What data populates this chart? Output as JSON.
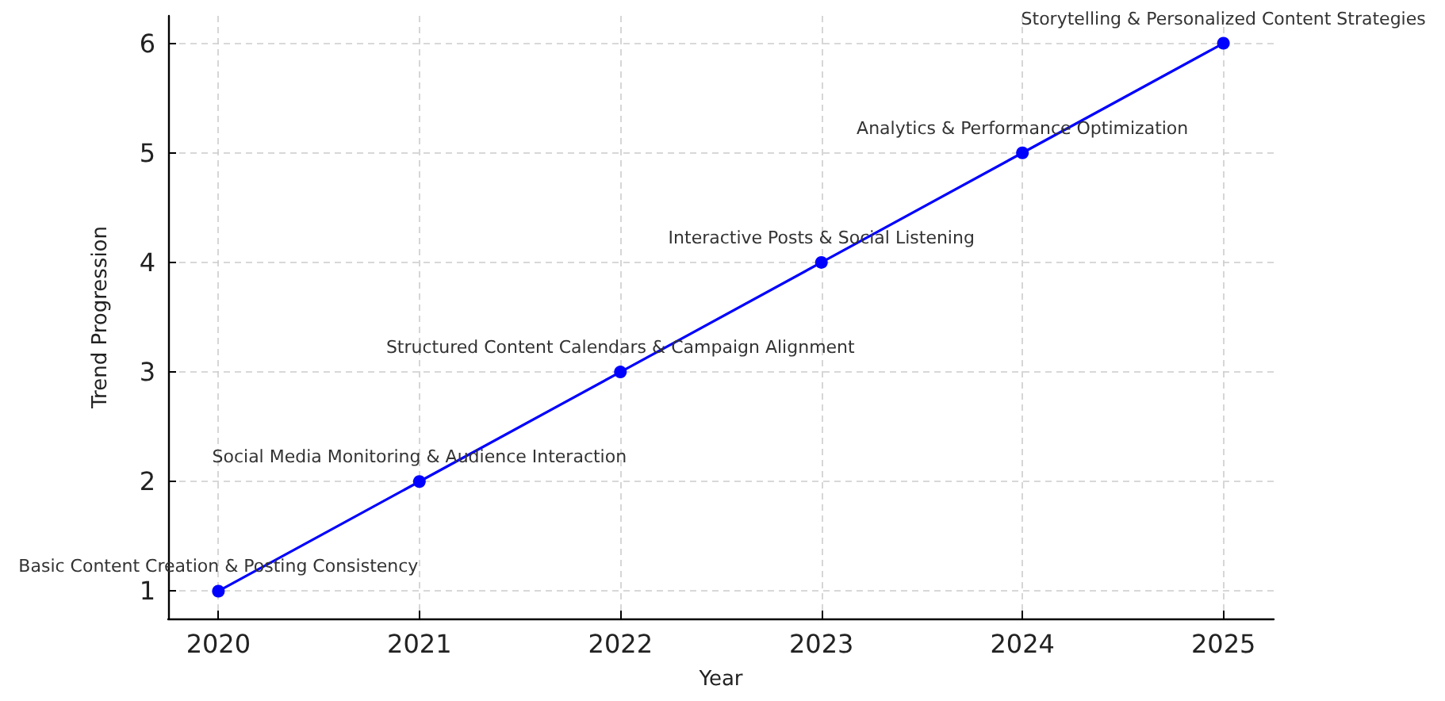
{
  "chart_data": {
    "type": "line",
    "xlabel": "Year",
    "ylabel": "Trend Progression",
    "x": [
      2020,
      2021,
      2022,
      2023,
      2024,
      2025
    ],
    "series": [
      {
        "color": "#0000ff",
        "values": [
          1,
          2,
          3,
          4,
          5,
          6
        ]
      }
    ],
    "xlim": [
      2019.75,
      2025.25
    ],
    "xticks": [
      2020,
      2021,
      2022,
      2023,
      2024,
      2025
    ],
    "ylim": [
      0.75,
      6.25
    ],
    "yticks": [
      1,
      2,
      3,
      4,
      5,
      6
    ],
    "grid": true,
    "marker": "circle",
    "line_style": "solid",
    "annotations": [
      {
        "text": "Basic Content Creation & Posting Consistency",
        "x": 2020,
        "y": 1
      },
      {
        "text": "Social Media Monitoring & Audience Interaction",
        "x": 2021,
        "y": 2
      },
      {
        "text": "Structured Content Calendars & Campaign Alignment",
        "x": 2022,
        "y": 3
      },
      {
        "text": "Interactive Posts & Social Listening",
        "x": 2023,
        "y": 4
      },
      {
        "text": "Analytics & Performance Optimization",
        "x": 2024,
        "y": 5
      },
      {
        "text": "Storytelling & Personalized Content Strategies",
        "x": 2025,
        "y": 6
      }
    ]
  }
}
